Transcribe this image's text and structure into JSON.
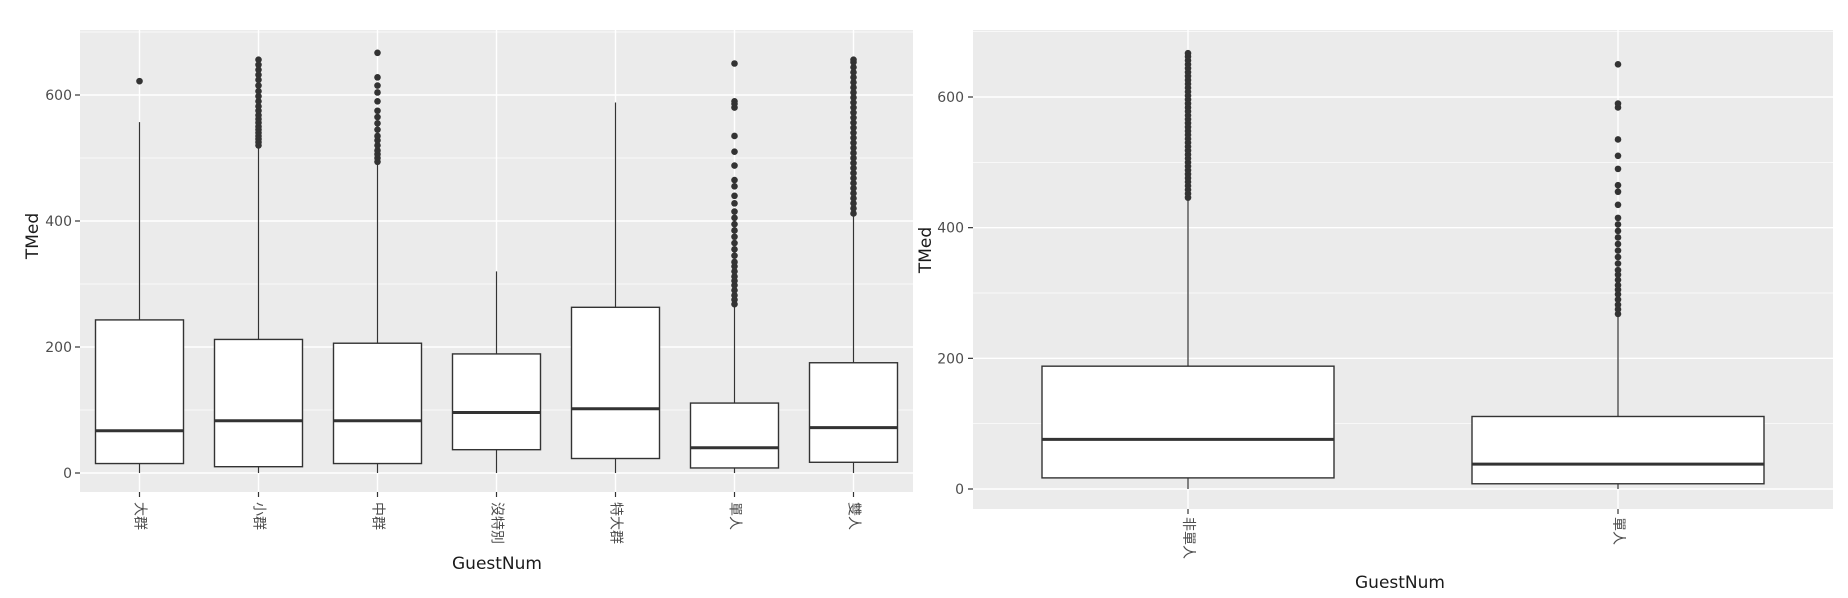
{
  "chart_data": [
    {
      "type": "box",
      "xlabel": "GuestNum",
      "ylabel": "TMed",
      "ylim": [
        -25,
        700
      ],
      "yticks": [
        0,
        200,
        400,
        600
      ],
      "grid": true,
      "categories": [
        "大群",
        "小群",
        "中群",
        "沒特別",
        "特大群",
        "單人",
        "雙人"
      ],
      "boxes": [
        {
          "category": "大群",
          "min": 0,
          "q1": 15,
          "median": 67,
          "q3": 243,
          "max": 557,
          "outliers": [
            622
          ]
        },
        {
          "category": "小群",
          "min": 0,
          "q1": 10,
          "median": 83,
          "q3": 212,
          "max": 515,
          "outliers": [
            520,
            525,
            530,
            535,
            540,
            545,
            550,
            556,
            562,
            568,
            575,
            582,
            590,
            598,
            606,
            615,
            624,
            632,
            640,
            648,
            656
          ]
        },
        {
          "category": "中群",
          "min": 0,
          "q1": 15,
          "median": 83,
          "q3": 206,
          "max": 492,
          "outliers": [
            494,
            500,
            506,
            512,
            520,
            528,
            535,
            545,
            555,
            565,
            575,
            590,
            604,
            615,
            628,
            667
          ]
        },
        {
          "category": "沒特別",
          "min": 0,
          "q1": 37,
          "median": 96,
          "q3": 189,
          "max": 320,
          "outliers": []
        },
        {
          "category": "特大群",
          "min": 0,
          "q1": 23,
          "median": 102,
          "q3": 263,
          "max": 588,
          "outliers": []
        },
        {
          "category": "單人",
          "min": 0,
          "q1": 8,
          "median": 40,
          "q3": 111,
          "max": 265,
          "outliers": [
            268,
            275,
            282,
            290,
            298,
            305,
            312,
            320,
            328,
            335,
            345,
            355,
            365,
            375,
            385,
            395,
            405,
            415,
            428,
            440,
            455,
            465,
            488,
            510,
            535,
            580,
            586,
            590,
            650
          ]
        },
        {
          "category": "雙人",
          "min": 0,
          "q1": 17,
          "median": 72,
          "q3": 175,
          "max": 410,
          "outliers": [
            412,
            420,
            428,
            436,
            444,
            452,
            460,
            468,
            476,
            484,
            492,
            500,
            508,
            516,
            524,
            532,
            540,
            548,
            556,
            564,
            572,
            580,
            588,
            596,
            604,
            612,
            620,
            628,
            636,
            644,
            652,
            656
          ]
        }
      ]
    },
    {
      "type": "box",
      "xlabel": "GuestNum",
      "ylabel": "TMed",
      "ylim": [
        -25,
        700
      ],
      "yticks": [
        0,
        200,
        400,
        600
      ],
      "grid": true,
      "categories": [
        "非單人",
        "單人"
      ],
      "boxes": [
        {
          "category": "非單人",
          "min": 0,
          "q1": 17,
          "median": 76,
          "q3": 188,
          "max": 443,
          "outliers": [
            446,
            452,
            458,
            464,
            470,
            476,
            482,
            488,
            494,
            500,
            506,
            512,
            518,
            524,
            530,
            536,
            542,
            548,
            554,
            560,
            566,
            572,
            578,
            584,
            590,
            596,
            602,
            608,
            614,
            620,
            626,
            632,
            638,
            644,
            650,
            656,
            662,
            667
          ]
        },
        {
          "category": "單人",
          "min": 0,
          "q1": 8,
          "median": 38,
          "q3": 111,
          "max": 265,
          "outliers": [
            268,
            275,
            282,
            290,
            298,
            305,
            312,
            320,
            328,
            335,
            345,
            355,
            365,
            375,
            385,
            395,
            405,
            415,
            435,
            455,
            465,
            490,
            510,
            535,
            584,
            590,
            650
          ]
        }
      ]
    }
  ]
}
